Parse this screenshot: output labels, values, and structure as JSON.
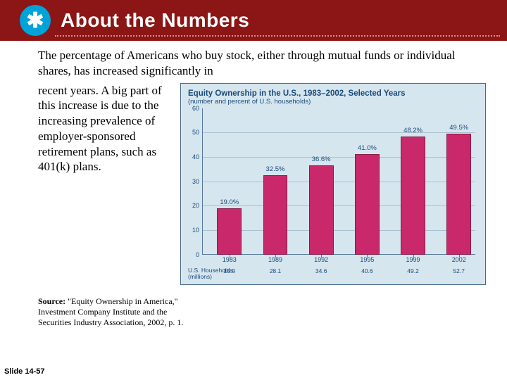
{
  "header": {
    "icon_glyph": "✱",
    "title": "About the Numbers"
  },
  "intro": "The percentage of Americans who buy stock, either through mutual funds or individual shares, has increased significantly in",
  "body": "recent years. A big part of this increase is due to the increasing prevalence of employer-sponsored retirement plans, such as 401(k) plans.",
  "source_label": "Source:",
  "source_text": " \"Equity Ownership in America,\" Investment Company Institute and the Securities Industry Association, 2002, p. 1.",
  "slide_number": "Slide 14-57",
  "chart": {
    "type": "bar",
    "title": "Equity Ownership in the U.S., 1983–2002, Selected Years",
    "subtitle": "(number and percent of U.S. households)",
    "categories": [
      "1983",
      "1989",
      "1992",
      "1995",
      "1999",
      "2002"
    ],
    "values": [
      19.0,
      32.5,
      36.6,
      41.0,
      48.2,
      49.5
    ],
    "value_labels": [
      "19.0%",
      "32.5%",
      "36.6%",
      "41.0%",
      "48.2%",
      "49.5%"
    ],
    "big_numbers_label": "U.S. Households (millions)",
    "big_numbers": [
      "15.9",
      "28.1",
      "34.6",
      "40.6",
      "49.2",
      "52.7"
    ],
    "ylim": [
      0,
      60
    ],
    "ytick_step": 10,
    "bar_color": "#c9286a",
    "bar_border": "#8a1a48",
    "bar_width_pct": 9,
    "grid_color": "#a8c0d0",
    "background_color": "#d6e6ef",
    "text_color": "#1a4a7a",
    "title_fontsize": 11.5,
    "label_fontsize": 9
  }
}
